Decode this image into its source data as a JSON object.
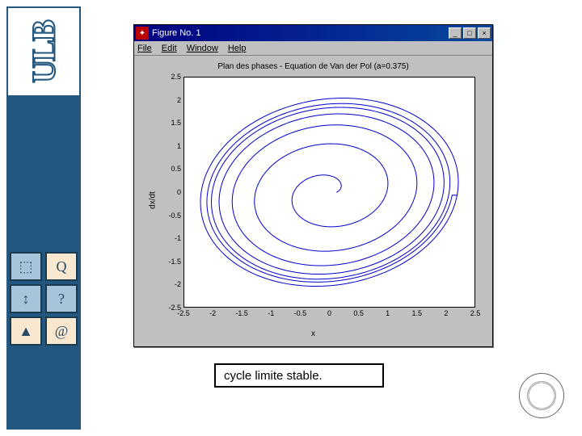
{
  "sidebar": {
    "logo": "ULB",
    "icon_tiles": [
      "⬚",
      "Q",
      "?",
      "▲",
      "@",
      "↕"
    ],
    "bg_color": "#23577f"
  },
  "window": {
    "title": "Figure No. 1",
    "icon_glyph": "✦",
    "menus": [
      "File",
      "Edit",
      "Window",
      "Help"
    ],
    "win_buttons": {
      "min": "_",
      "max": "□",
      "close": "×"
    }
  },
  "plot": {
    "type": "line",
    "title": "Plan des phases - Equation de Van der Pol (a=0.375)",
    "xlabel": "x",
    "ylabel": "dx/dt",
    "xlim": [
      -2.5,
      2.5
    ],
    "ylim": [
      -2.5,
      2.5
    ],
    "xtick_step": 0.5,
    "ytick_step": 0.5,
    "line_color": "#0000cc",
    "line_width": 1,
    "background_color": "#ffffff",
    "axes_bg": "#c0c0c0",
    "spiral": {
      "a_start": 0.12,
      "a_end": 2.2,
      "b_start": 0.1,
      "b_end": 2.05,
      "turns": 6,
      "slant": 0.15,
      "pts": 1400
    }
  },
  "caption": "cycle limite stable.",
  "colors": {
    "titlebar_start": "#000080",
    "titlebar_end": "#0848a0",
    "win_gray": "#c0c0c0"
  }
}
